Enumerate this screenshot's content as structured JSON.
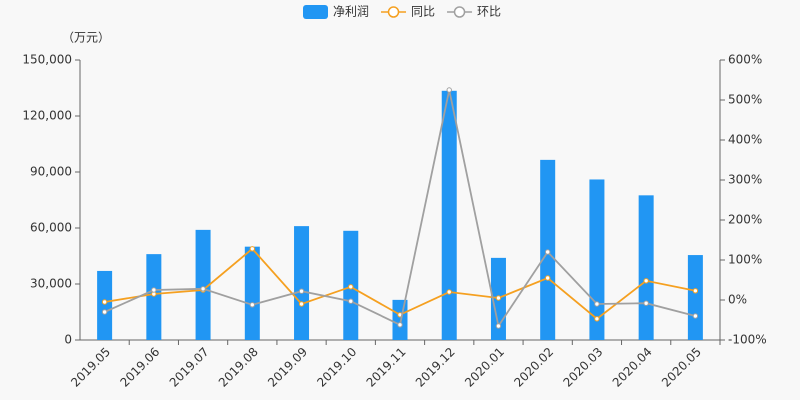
{
  "chart_data": {
    "type": "bar-line",
    "unit_label": "（万元）",
    "categories": [
      "2019.05",
      "2019.06",
      "2019.07",
      "2019.08",
      "2019.09",
      "2019.10",
      "2019.11",
      "2019.12",
      "2020.01",
      "2020.02",
      "2020.03",
      "2020.04",
      "2020.05"
    ],
    "series": [
      {
        "name": "净利润",
        "type": "bar",
        "color": "#2196f3",
        "values": [
          37000,
          46000,
          59000,
          50000,
          61000,
          58500,
          21500,
          133500,
          44000,
          96500,
          86000,
          77500,
          45500
        ]
      },
      {
        "name": "同比",
        "type": "line",
        "axis": "y2",
        "color": "#f5a020",
        "values": [
          -5,
          15,
          25,
          128,
          -10,
          33,
          -37,
          20,
          5,
          55,
          -47,
          48,
          23
        ]
      },
      {
        "name": "环比",
        "type": "line",
        "axis": "y2",
        "color": "#a0a0a0",
        "values": [
          -30,
          25,
          28,
          -12,
          22,
          -3,
          -62,
          525,
          -65,
          120,
          -10,
          -8,
          -40
        ]
      }
    ],
    "ylim": [
      0,
      150000
    ],
    "yticks": [
      {
        "value": 0,
        "label": "0"
      },
      {
        "value": 30000,
        "label": "30,000"
      },
      {
        "value": 60000,
        "label": "60,000"
      },
      {
        "value": 90000,
        "label": "90,000"
      },
      {
        "value": 120000,
        "label": "120,000"
      },
      {
        "value": 150000,
        "label": "150,000"
      }
    ],
    "y2lim": [
      -100,
      600
    ],
    "y2ticks": [
      {
        "value": -100,
        "label": "-100%"
      },
      {
        "value": 0,
        "label": "0%"
      },
      {
        "value": 100,
        "label": "100%"
      },
      {
        "value": 200,
        "label": "200%"
      },
      {
        "value": 300,
        "label": "300%"
      },
      {
        "value": 400,
        "label": "400%"
      },
      {
        "value": 500,
        "label": "500%"
      },
      {
        "value": 600,
        "label": "600%"
      }
    ]
  }
}
